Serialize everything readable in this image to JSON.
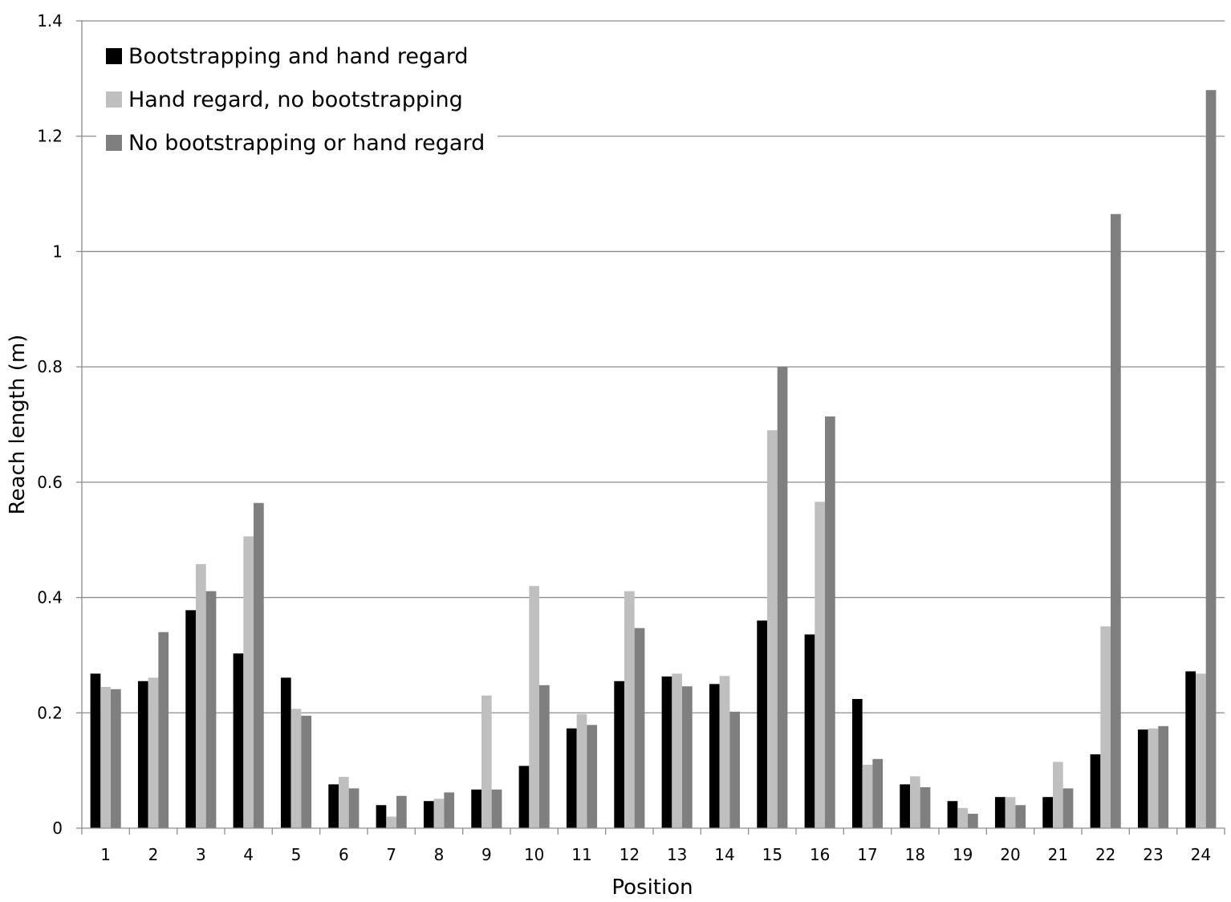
{
  "chart_data": {
    "type": "bar",
    "title": "",
    "xlabel": "Position",
    "ylabel": "Reach length (m)",
    "ylim": [
      0,
      1.4
    ],
    "yticks": [
      "0",
      "0.2",
      "0.4",
      "0.6",
      "0.8",
      "1",
      "1.2",
      "1.4"
    ],
    "grid": "horizontal",
    "legend_position": "top-left",
    "categories": [
      "1",
      "2",
      "3",
      "4",
      "5",
      "6",
      "7",
      "8",
      "9",
      "10",
      "11",
      "12",
      "13",
      "14",
      "15",
      "16",
      "17",
      "18",
      "19",
      "20",
      "21",
      "22",
      "23",
      "24"
    ],
    "series": [
      {
        "name": "Bootstrapping and hand regard",
        "color": "#000000",
        "values": [
          0.268,
          0.255,
          0.378,
          0.303,
          0.261,
          0.076,
          0.04,
          0.047,
          0.067,
          0.108,
          0.173,
          0.255,
          0.263,
          0.25,
          0.36,
          0.336,
          0.224,
          0.076,
          0.047,
          0.054,
          0.054,
          0.128,
          0.171,
          0.272
        ]
      },
      {
        "name": "Hand regard, no bootstrapping",
        "color": "#bfbfbf",
        "values": [
          0.245,
          0.261,
          0.458,
          0.506,
          0.207,
          0.089,
          0.02,
          0.051,
          0.23,
          0.42,
          0.198,
          0.411,
          0.268,
          0.264,
          0.69,
          0.566,
          0.11,
          0.09,
          0.035,
          0.054,
          0.115,
          0.35,
          0.173,
          0.268
        ]
      },
      {
        "name": "No bootstrapping or hand regard",
        "color": "#7f7f7f",
        "values": [
          0.241,
          0.34,
          0.411,
          0.564,
          0.195,
          0.069,
          0.056,
          0.062,
          0.067,
          0.248,
          0.179,
          0.347,
          0.246,
          0.202,
          0.8,
          0.714,
          0.12,
          0.071,
          0.025,
          0.04,
          0.069,
          1.065,
          0.177,
          1.28
        ]
      }
    ]
  }
}
